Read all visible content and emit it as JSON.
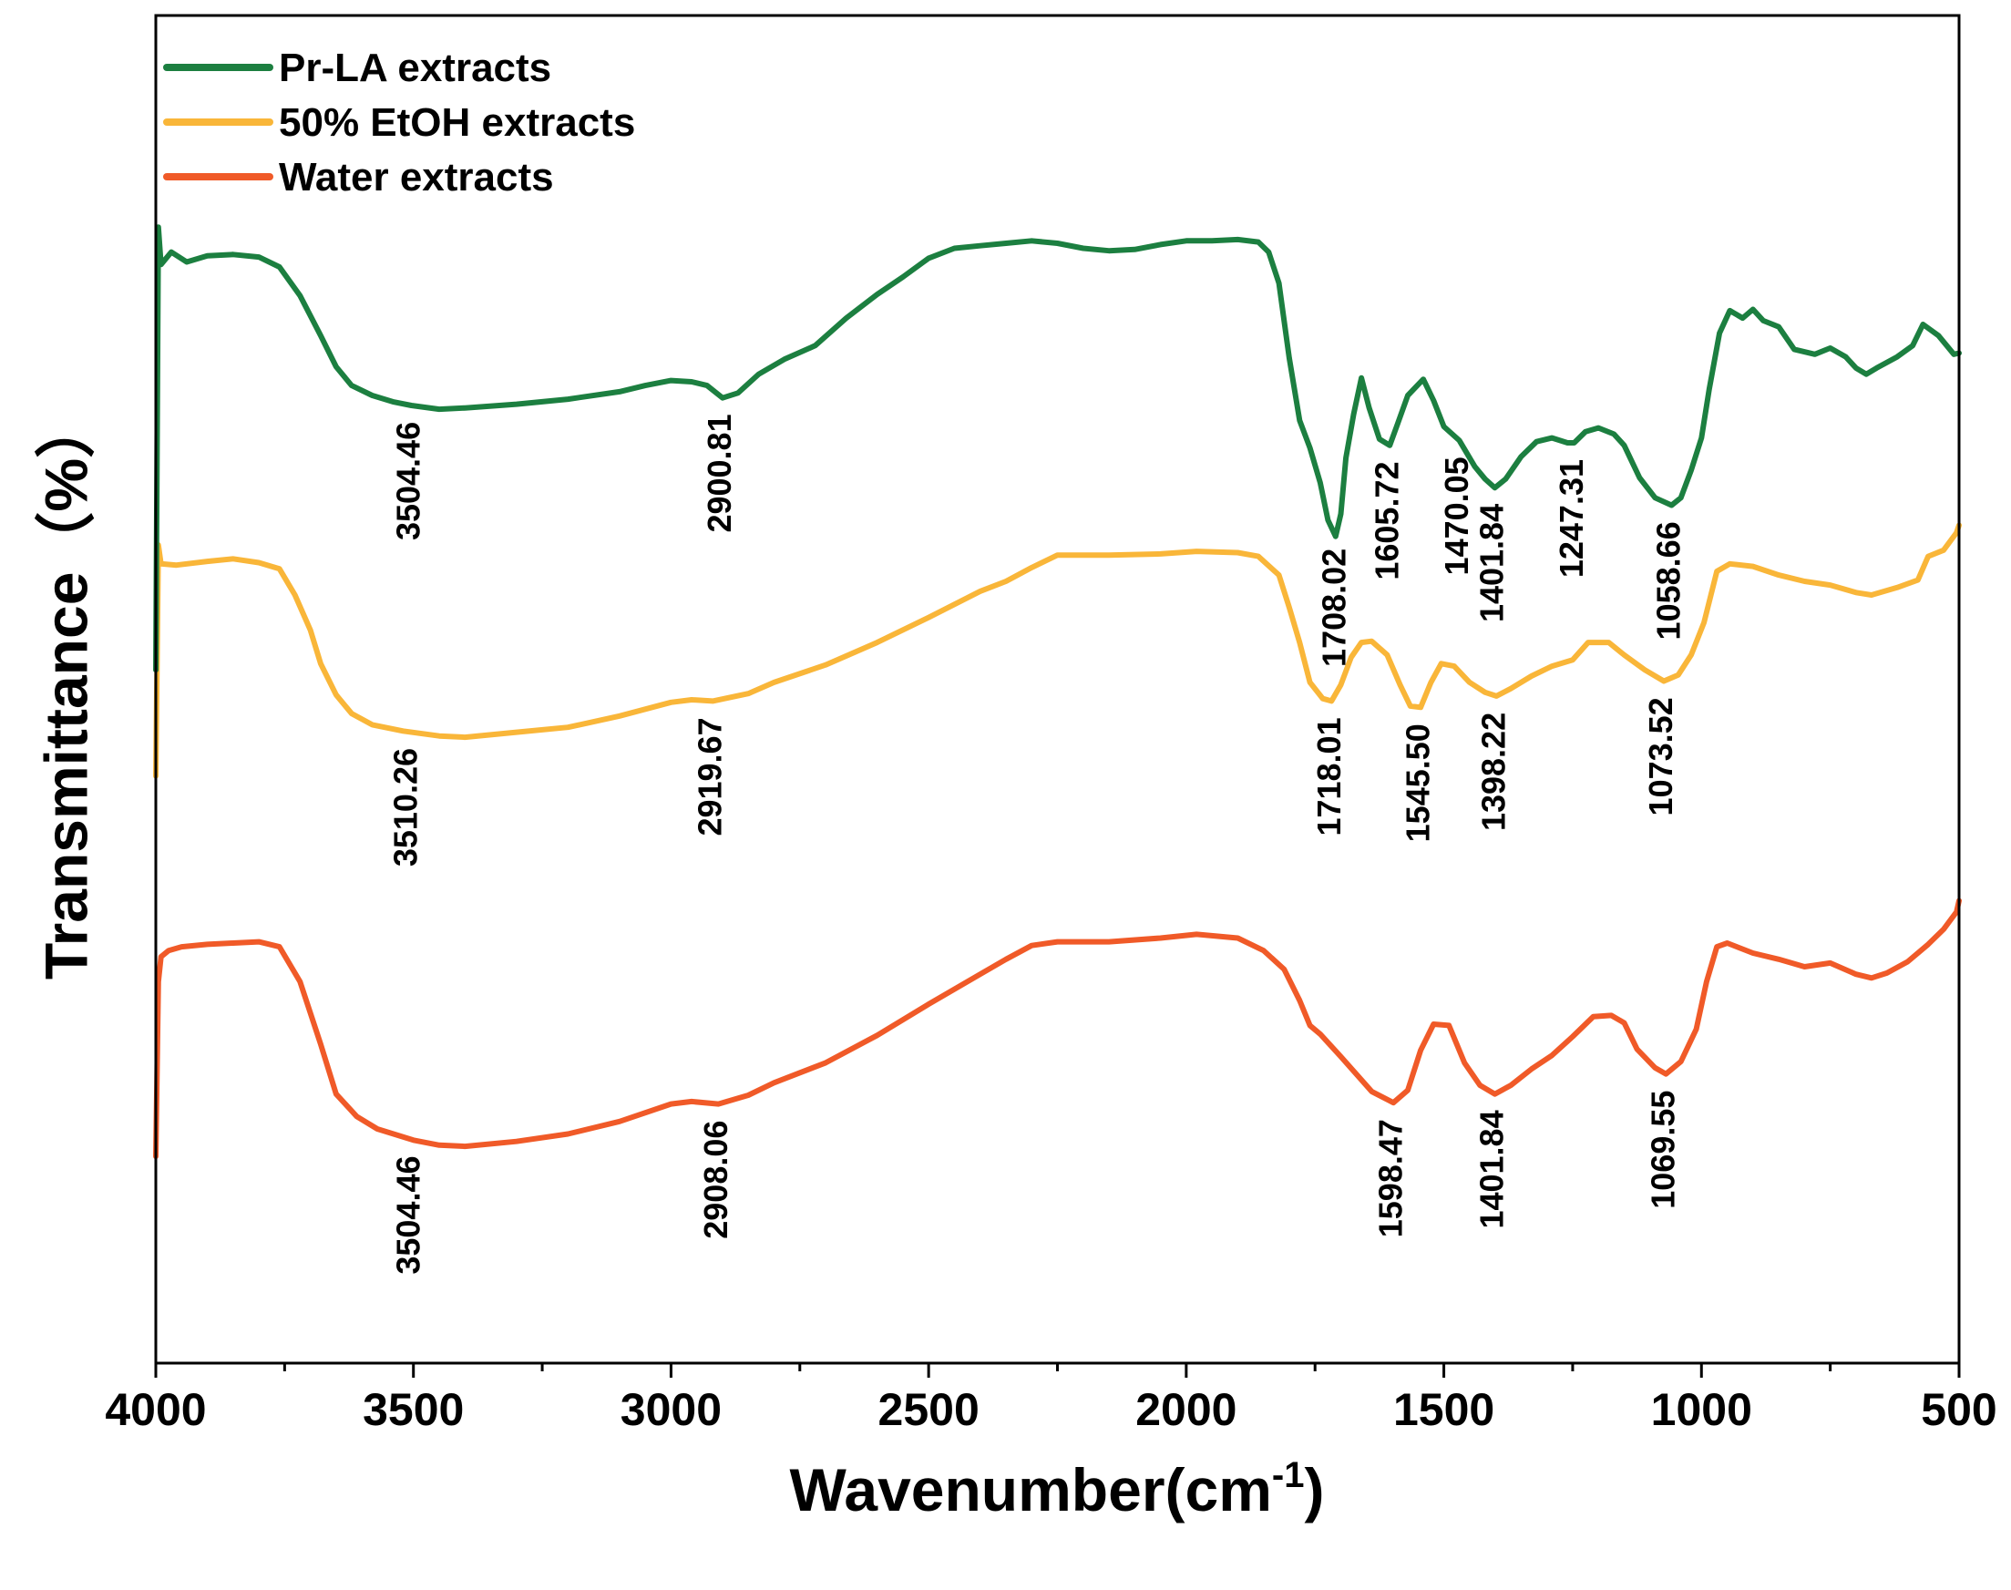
{
  "chart_data": {
    "type": "line",
    "title": "",
    "xlabel": "Wavenumber(cm",
    "xlabel_sup": "-1",
    "xlabel_close": ")",
    "ylabel": "Transmittance（%）",
    "xlim": [
      4000,
      500
    ],
    "x_reversed": true,
    "ylim": [
      0,
      100
    ],
    "x_ticks": [
      4000,
      3500,
      3000,
      2500,
      2000,
      1500,
      1000,
      500
    ],
    "y_ticks_shown": false,
    "legend_position": "top-left",
    "series": [
      {
        "name": "Water extracts",
        "color": "#f05a28",
        "points": [
          [
            4000,
            10
          ],
          [
            3995,
            24
          ],
          [
            3990,
            26
          ],
          [
            3975,
            26.5
          ],
          [
            3950,
            26.8
          ],
          [
            3900,
            27
          ],
          [
            3850,
            27.1
          ],
          [
            3800,
            27.2
          ],
          [
            3760,
            26.8
          ],
          [
            3720,
            24
          ],
          [
            3680,
            19
          ],
          [
            3650,
            15
          ],
          [
            3610,
            13.2
          ],
          [
            3570,
            12.2
          ],
          [
            3500,
            11.3
          ],
          [
            3450,
            10.9
          ],
          [
            3400,
            10.8
          ],
          [
            3300,
            11.2
          ],
          [
            3200,
            11.8
          ],
          [
            3100,
            12.8
          ],
          [
            3000,
            14.2
          ],
          [
            2960,
            14.4
          ],
          [
            2908,
            14.2
          ],
          [
            2850,
            14.9
          ],
          [
            2800,
            15.9
          ],
          [
            2700,
            17.5
          ],
          [
            2600,
            19.7
          ],
          [
            2500,
            22.2
          ],
          [
            2400,
            24.6
          ],
          [
            2350,
            25.8
          ],
          [
            2300,
            26.9
          ],
          [
            2250,
            27.2
          ],
          [
            2150,
            27.2
          ],
          [
            2050,
            27.5
          ],
          [
            1980,
            27.8
          ],
          [
            1900,
            27.5
          ],
          [
            1850,
            26.5
          ],
          [
            1810,
            25
          ],
          [
            1780,
            22.5
          ],
          [
            1760,
            20.5
          ],
          [
            1740,
            19.8
          ],
          [
            1700,
            18
          ],
          [
            1640,
            15.2
          ],
          [
            1598,
            14.3
          ],
          [
            1570,
            15.3
          ],
          [
            1545,
            18.5
          ],
          [
            1520,
            20.6
          ],
          [
            1490,
            20.5
          ],
          [
            1460,
            17.5
          ],
          [
            1430,
            15.7
          ],
          [
            1401,
            15
          ],
          [
            1370,
            15.7
          ],
          [
            1330,
            17
          ],
          [
            1290,
            18.1
          ],
          [
            1250,
            19.6
          ],
          [
            1210,
            21.2
          ],
          [
            1175,
            21.3
          ],
          [
            1150,
            20.7
          ],
          [
            1125,
            18.6
          ],
          [
            1090,
            17.1
          ],
          [
            1069,
            16.6
          ],
          [
            1040,
            17.6
          ],
          [
            1010,
            20.2
          ],
          [
            990,
            24
          ],
          [
            970,
            26.8
          ],
          [
            950,
            27.1
          ],
          [
            900,
            26.3
          ],
          [
            850,
            25.8
          ],
          [
            800,
            25.2
          ],
          [
            750,
            25.5
          ],
          [
            700,
            24.6
          ],
          [
            670,
            24.3
          ],
          [
            640,
            24.7
          ],
          [
            600,
            25.6
          ],
          [
            560,
            27
          ],
          [
            530,
            28.2
          ],
          [
            505,
            29.6
          ],
          [
            500,
            30.5
          ]
        ]
      },
      {
        "name": "50% EtOH extracts",
        "color": "#f9b639",
        "points": [
          [
            4000,
            40.5
          ],
          [
            3995,
            59
          ],
          [
            3990,
            57.5
          ],
          [
            3960,
            57.4
          ],
          [
            3900,
            57.7
          ],
          [
            3850,
            57.9
          ],
          [
            3800,
            57.6
          ],
          [
            3760,
            57.1
          ],
          [
            3730,
            55
          ],
          [
            3700,
            52.2
          ],
          [
            3680,
            49.5
          ],
          [
            3650,
            47
          ],
          [
            3620,
            45.5
          ],
          [
            3580,
            44.6
          ],
          [
            3520,
            44.1
          ],
          [
            3450,
            43.7
          ],
          [
            3400,
            43.6
          ],
          [
            3300,
            44
          ],
          [
            3200,
            44.4
          ],
          [
            3100,
            45.3
          ],
          [
            3000,
            46.4
          ],
          [
            2960,
            46.6
          ],
          [
            2919,
            46.5
          ],
          [
            2850,
            47.1
          ],
          [
            2800,
            48
          ],
          [
            2700,
            49.4
          ],
          [
            2600,
            51.2
          ],
          [
            2500,
            53.2
          ],
          [
            2400,
            55.3
          ],
          [
            2350,
            56.1
          ],
          [
            2300,
            57.2
          ],
          [
            2250,
            58.2
          ],
          [
            2150,
            58.2
          ],
          [
            2050,
            58.3
          ],
          [
            1980,
            58.5
          ],
          [
            1900,
            58.4
          ],
          [
            1860,
            58.1
          ],
          [
            1820,
            56.6
          ],
          [
            1800,
            54
          ],
          [
            1780,
            51.2
          ],
          [
            1760,
            48
          ],
          [
            1735,
            46.7
          ],
          [
            1718,
            46.5
          ],
          [
            1700,
            47.8
          ],
          [
            1680,
            50
          ],
          [
            1660,
            51.2
          ],
          [
            1640,
            51.3
          ],
          [
            1610,
            50.2
          ],
          [
            1585,
            47.8
          ],
          [
            1565,
            46.1
          ],
          [
            1545,
            46
          ],
          [
            1525,
            48
          ],
          [
            1505,
            49.5
          ],
          [
            1480,
            49.3
          ],
          [
            1450,
            48
          ],
          [
            1420,
            47.2
          ],
          [
            1398,
            46.9
          ],
          [
            1370,
            47.5
          ],
          [
            1330,
            48.5
          ],
          [
            1290,
            49.3
          ],
          [
            1250,
            49.8
          ],
          [
            1220,
            51.2
          ],
          [
            1180,
            51.2
          ],
          [
            1150,
            50.2
          ],
          [
            1110,
            49
          ],
          [
            1073,
            48.1
          ],
          [
            1045,
            48.6
          ],
          [
            1020,
            50.2
          ],
          [
            995,
            52.8
          ],
          [
            970,
            56.9
          ],
          [
            945,
            57.5
          ],
          [
            900,
            57.3
          ],
          [
            850,
            56.6
          ],
          [
            800,
            56.1
          ],
          [
            750,
            55.8
          ],
          [
            700,
            55.2
          ],
          [
            670,
            55
          ],
          [
            620,
            55.6
          ],
          [
            580,
            56.2
          ],
          [
            560,
            58.1
          ],
          [
            530,
            58.6
          ],
          [
            505,
            60
          ],
          [
            500,
            60.6
          ]
        ]
      },
      {
        "name": "Pr-LA extracts",
        "color": "#1c7f40",
        "points": [
          [
            4000,
            49
          ],
          [
            3995,
            84.5
          ],
          [
            3990,
            81.5
          ],
          [
            3970,
            82.5
          ],
          [
            3940,
            81.7
          ],
          [
            3900,
            82.2
          ],
          [
            3850,
            82.3
          ],
          [
            3800,
            82.1
          ],
          [
            3760,
            81.3
          ],
          [
            3720,
            79
          ],
          [
            3680,
            75.8
          ],
          [
            3650,
            73.3
          ],
          [
            3620,
            71.8
          ],
          [
            3580,
            71
          ],
          [
            3540,
            70.5
          ],
          [
            3504,
            70.2
          ],
          [
            3450,
            69.9
          ],
          [
            3400,
            70
          ],
          [
            3300,
            70.3
          ],
          [
            3200,
            70.7
          ],
          [
            3100,
            71.3
          ],
          [
            3050,
            71.8
          ],
          [
            3000,
            72.2
          ],
          [
            2960,
            72.1
          ],
          [
            2930,
            71.8
          ],
          [
            2900,
            70.8
          ],
          [
            2870,
            71.2
          ],
          [
            2830,
            72.7
          ],
          [
            2780,
            73.9
          ],
          [
            2720,
            75
          ],
          [
            2660,
            77.2
          ],
          [
            2600,
            79.1
          ],
          [
            2550,
            80.5
          ],
          [
            2500,
            82
          ],
          [
            2450,
            82.8
          ],
          [
            2400,
            83
          ],
          [
            2350,
            83.2
          ],
          [
            2300,
            83.4
          ],
          [
            2250,
            83.2
          ],
          [
            2200,
            82.8
          ],
          [
            2150,
            82.6
          ],
          [
            2100,
            82.7
          ],
          [
            2050,
            83.1
          ],
          [
            2000,
            83.4
          ],
          [
            1950,
            83.4
          ],
          [
            1900,
            83.5
          ],
          [
            1860,
            83.3
          ],
          [
            1840,
            82.5
          ],
          [
            1820,
            80
          ],
          [
            1800,
            74
          ],
          [
            1780,
            69
          ],
          [
            1760,
            66.8
          ],
          [
            1740,
            64
          ],
          [
            1725,
            61
          ],
          [
            1710,
            59.7
          ],
          [
            1700,
            61.5
          ],
          [
            1690,
            66
          ],
          [
            1675,
            69.5
          ],
          [
            1660,
            72.4
          ],
          [
            1645,
            70
          ],
          [
            1625,
            67.5
          ],
          [
            1605,
            67
          ],
          [
            1590,
            68.7
          ],
          [
            1570,
            71
          ],
          [
            1540,
            72.3
          ],
          [
            1520,
            70.6
          ],
          [
            1500,
            68.5
          ],
          [
            1470,
            67.4
          ],
          [
            1440,
            65.3
          ],
          [
            1420,
            64.3
          ],
          [
            1401,
            63.6
          ],
          [
            1380,
            64.3
          ],
          [
            1350,
            66.1
          ],
          [
            1320,
            67.3
          ],
          [
            1290,
            67.6
          ],
          [
            1260,
            67.2
          ],
          [
            1247,
            67.2
          ],
          [
            1225,
            68.1
          ],
          [
            1200,
            68.4
          ],
          [
            1170,
            67.9
          ],
          [
            1150,
            67
          ],
          [
            1120,
            64.4
          ],
          [
            1090,
            62.8
          ],
          [
            1058,
            62.2
          ],
          [
            1040,
            62.8
          ],
          [
            1020,
            65
          ],
          [
            1000,
            67.6
          ],
          [
            985,
            71.5
          ],
          [
            965,
            76
          ],
          [
            945,
            77.8
          ],
          [
            920,
            77.2
          ],
          [
            900,
            77.9
          ],
          [
            880,
            77
          ],
          [
            850,
            76.5
          ],
          [
            820,
            74.7
          ],
          [
            780,
            74.3
          ],
          [
            750,
            74.8
          ],
          [
            720,
            74.1
          ],
          [
            700,
            73.2
          ],
          [
            680,
            72.7
          ],
          [
            660,
            73.2
          ],
          [
            620,
            74.1
          ],
          [
            590,
            75
          ],
          [
            570,
            76.7
          ],
          [
            540,
            75.8
          ],
          [
            510,
            74.3
          ],
          [
            500,
            74.4
          ]
        ]
      }
    ],
    "peak_labels": [
      {
        "series": "Pr-LA extracts",
        "text": "3504.46",
        "x": 3504.46
      },
      {
        "series": "Pr-LA extracts",
        "text": "2900.81",
        "x": 2900.81
      },
      {
        "series": "Pr-LA extracts",
        "text": "1708.02",
        "x": 1708.02
      },
      {
        "series": "Pr-LA extracts",
        "text": "1605.72",
        "x": 1605.72
      },
      {
        "series": "Pr-LA extracts",
        "text": "1470.05",
        "x": 1470.05
      },
      {
        "series": "Pr-LA extracts",
        "text": "1401.84",
        "x": 1401.84
      },
      {
        "series": "Pr-LA extracts",
        "text": "1247.31",
        "x": 1247.31
      },
      {
        "series": "Pr-LA extracts",
        "text": "1058.66",
        "x": 1058.66
      },
      {
        "series": "50% EtOH extracts",
        "text": "3510.26",
        "x": 3510.26
      },
      {
        "series": "50% EtOH extracts",
        "text": "2919.67",
        "x": 2919.67
      },
      {
        "series": "50% EtOH extracts",
        "text": "1718.01",
        "x": 1718.01
      },
      {
        "series": "50% EtOH extracts",
        "text": "1545.50",
        "x": 1545.5
      },
      {
        "series": "50% EtOH extracts",
        "text": "1398.22",
        "x": 1398.22
      },
      {
        "series": "50% EtOH extracts",
        "text": "1073.52",
        "x": 1073.52
      },
      {
        "series": "Water extracts",
        "text": "3504.46",
        "x": 3504.46
      },
      {
        "series": "Water extracts",
        "text": "2908.06",
        "x": 2908.06
      },
      {
        "series": "Water extracts",
        "text": "1598.47",
        "x": 1598.47
      },
      {
        "series": "Water extracts",
        "text": "1401.84",
        "x": 1401.84
      },
      {
        "series": "Water extracts",
        "text": "1069.55",
        "x": 1069.55
      }
    ]
  }
}
